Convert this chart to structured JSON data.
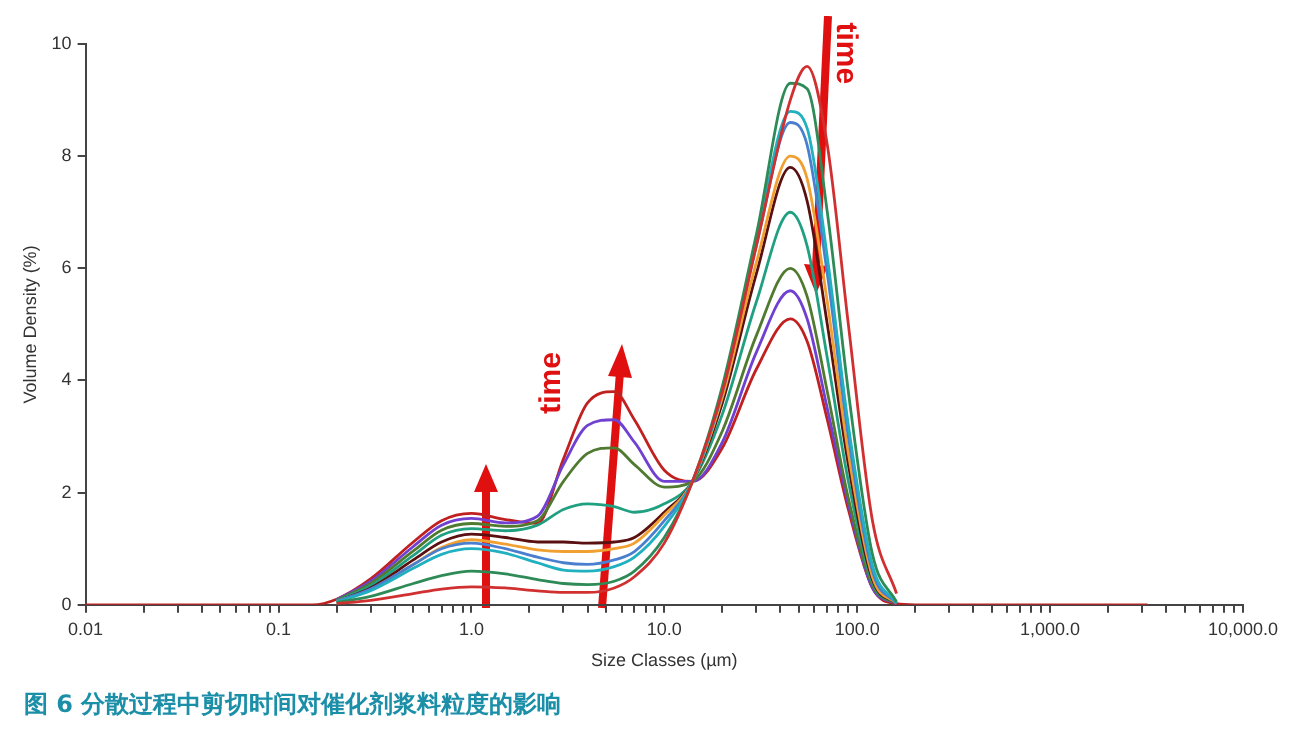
{
  "chart_data": {
    "type": "line",
    "title": "图 6 分散过程中剪切时间对催化剂浆料粒度的影响",
    "xlabel": "Size Classes (µm)",
    "ylabel": "Volume Density (%)",
    "annotations": [
      "time",
      {
        "text": "time",
        "x": 60,
        "y": 9.6
      }
    ],
    "x": [
      0.01,
      0.15,
      0.2,
      0.3,
      0.5,
      0.7,
      1.0,
      1.5,
      2.2,
      3,
      4,
      5.5,
      7,
      10,
      14,
      20,
      30,
      45,
      55,
      70,
      90,
      120,
      160,
      200,
      3200
    ],
    "xlim": [
      0.01,
      10000
    ],
    "log": "x",
    "ylim": [
      0,
      10
    ],
    "yticks": [
      0,
      2,
      4,
      6,
      8,
      10
    ],
    "xticks": [
      {
        "value": 0.01,
        "label": "0.01"
      },
      {
        "value": 0.02,
        "label": null
      },
      {
        "value": 0.03,
        "label": null
      },
      {
        "value": 0.04,
        "label": null
      },
      {
        "value": 0.05,
        "label": null
      },
      {
        "value": 0.06,
        "label": null
      },
      {
        "value": 0.07,
        "label": null
      },
      {
        "value": 0.08,
        "label": null
      },
      {
        "value": 0.09,
        "label": null
      },
      {
        "value": 0.1,
        "label": "0.1"
      },
      {
        "value": 0.2,
        "label": null
      },
      {
        "value": 0.3,
        "label": null
      },
      {
        "value": 0.4,
        "label": null
      },
      {
        "value": 0.5,
        "label": null
      },
      {
        "value": 0.6,
        "label": null
      },
      {
        "value": 0.7,
        "label": null
      },
      {
        "value": 0.8,
        "label": null
      },
      {
        "value": 0.9,
        "label": null
      },
      {
        "value": 1,
        "label": "1.0"
      },
      {
        "value": 2,
        "label": null
      },
      {
        "value": 3,
        "label": null
      },
      {
        "value": 4,
        "label": null
      },
      {
        "value": 5,
        "label": null
      },
      {
        "value": 6,
        "label": null
      },
      {
        "value": 7,
        "label": null
      },
      {
        "value": 8,
        "label": null
      },
      {
        "value": 9,
        "label": null
      },
      {
        "value": 10,
        "label": "10.0"
      },
      {
        "value": 20,
        "label": null
      },
      {
        "value": 30,
        "label": null
      },
      {
        "value": 40,
        "label": null
      },
      {
        "value": 50,
        "label": null
      },
      {
        "value": 60,
        "label": null
      },
      {
        "value": 70,
        "label": null
      },
      {
        "value": 80,
        "label": null
      },
      {
        "value": 90,
        "label": null
      },
      {
        "value": 100,
        "label": "100.0"
      },
      {
        "value": 200,
        "label": null
      },
      {
        "value": 300,
        "label": null
      },
      {
        "value": 400,
        "label": null
      },
      {
        "value": 500,
        "label": null
      },
      {
        "value": 600,
        "label": null
      },
      {
        "value": 700,
        "label": null
      },
      {
        "value": 800,
        "label": null
      },
      {
        "value": 900,
        "label": null
      },
      {
        "value": 1000,
        "label": "1,000.0"
      },
      {
        "value": 2000,
        "label": null
      },
      {
        "value": 3000,
        "label": null
      },
      {
        "value": 4000,
        "label": null
      },
      {
        "value": 5000,
        "label": null
      },
      {
        "value": 6000,
        "label": null
      },
      {
        "value": 7000,
        "label": null
      },
      {
        "value": 8000,
        "label": null
      },
      {
        "value": 9000,
        "label": null
      },
      {
        "value": 10000,
        "label": "10,000.0"
      }
    ],
    "grid": false,
    "legend": false,
    "marker": "none",
    "line_style": "solid",
    "series": [
      {
        "color": "#d03030",
        "values": [
          null,
          null,
          0.02,
          0.08,
          0.2,
          0.28,
          0.32,
          0.3,
          0.25,
          0.22,
          0.22,
          0.3,
          0.5,
          1.1,
          2.2,
          3.8,
          6.4,
          9.0,
          9.6,
          8.2,
          5.0,
          1.5,
          0.2,
          null,
          null
        ]
      },
      {
        "color": "#2e8b57",
        "values": [
          null,
          null,
          0.04,
          0.15,
          0.38,
          0.52,
          0.6,
          0.55,
          0.45,
          0.38,
          0.36,
          0.42,
          0.6,
          1.2,
          2.2,
          3.9,
          6.6,
          9.3,
          9.2,
          7.0,
          3.8,
          0.9,
          0.05,
          null,
          null
        ]
      },
      {
        "color": "#20b0c0",
        "values": [
          null,
          null,
          0.05,
          0.25,
          0.65,
          0.9,
          1.0,
          0.92,
          0.75,
          0.62,
          0.6,
          0.68,
          0.85,
          1.4,
          2.2,
          3.8,
          6.5,
          8.8,
          8.5,
          6.2,
          3.2,
          0.7,
          0.03,
          null,
          null
        ]
      },
      {
        "color": "#4a7fd0",
        "values": [
          null,
          null,
          0.06,
          0.28,
          0.72,
          1.0,
          1.1,
          1.0,
          0.85,
          0.75,
          0.72,
          0.8,
          0.95,
          1.5,
          2.2,
          3.8,
          6.4,
          8.6,
          8.2,
          5.9,
          3.0,
          0.6,
          0.02,
          null,
          null
        ]
      },
      {
        "color": "#f0a030",
        "values": [
          null,
          null,
          0.06,
          0.27,
          0.72,
          1.02,
          1.16,
          1.08,
          0.98,
          0.95,
          0.95,
          1.0,
          1.1,
          1.6,
          2.2,
          3.7,
          6.1,
          8.0,
          7.6,
          5.4,
          2.7,
          0.5,
          0.02,
          null,
          null
        ]
      },
      {
        "color": "#5a1010",
        "values": [
          null,
          null,
          0.06,
          0.3,
          0.8,
          1.12,
          1.26,
          1.2,
          1.12,
          1.12,
          1.1,
          1.12,
          1.2,
          1.65,
          2.2,
          3.6,
          5.9,
          7.8,
          7.2,
          5.0,
          2.5,
          0.45,
          0.02,
          null,
          null
        ]
      },
      {
        "color": "#20a080",
        "values": [
          null,
          null,
          0.07,
          0.34,
          0.88,
          1.24,
          1.36,
          1.32,
          1.42,
          1.7,
          1.8,
          1.75,
          1.65,
          1.8,
          2.2,
          3.4,
          5.4,
          7.0,
          6.4,
          4.4,
          2.2,
          0.4,
          0.02,
          null,
          null
        ]
      },
      {
        "color": "#507a30",
        "values": [
          null,
          null,
          0.08,
          0.38,
          0.96,
          1.33,
          1.45,
          1.4,
          1.5,
          2.2,
          2.7,
          2.8,
          2.5,
          2.1,
          2.2,
          3.1,
          4.8,
          6.0,
          5.5,
          3.8,
          1.9,
          0.35,
          0.02,
          null,
          null
        ]
      },
      {
        "color": "#7040d0",
        "values": [
          null,
          null,
          0.09,
          0.42,
          1.04,
          1.42,
          1.54,
          1.46,
          1.58,
          2.5,
          3.2,
          3.3,
          2.9,
          2.2,
          2.2,
          2.9,
          4.5,
          5.6,
          5.1,
          3.5,
          1.8,
          0.3,
          0.02,
          null,
          null
        ]
      },
      {
        "color": "#c02020",
        "values": [
          0,
          0,
          0.1,
          0.46,
          1.12,
          1.5,
          1.63,
          1.52,
          1.45,
          2.6,
          3.6,
          3.8,
          3.3,
          2.4,
          2.2,
          2.8,
          4.2,
          5.1,
          4.7,
          3.3,
          1.7,
          0.3,
          0.02,
          0,
          0
        ]
      }
    ]
  }
}
